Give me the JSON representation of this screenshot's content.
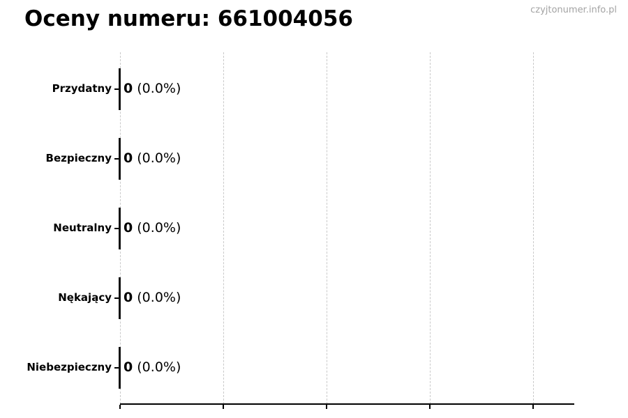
{
  "header": {
    "watermark": "czyjtonumer.info.pl"
  },
  "chart_data": {
    "type": "bar",
    "orientation": "horizontal",
    "title": "Oceny numeru: 661004056",
    "categories": [
      "Przydatny",
      "Bezpieczny",
      "Neutralny",
      "Nękający",
      "Niebezpieczny"
    ],
    "values": [
      0,
      0,
      0,
      0,
      0
    ],
    "percents": [
      "0.0%",
      "0.0%",
      "0.0%",
      "0.0%",
      "0.0%"
    ],
    "value_labels": [
      "0 (0.0%)",
      "0 (0.0%)",
      "0 (0.0%)",
      "0 (0.0%)",
      "0 (0.0%)"
    ],
    "xlim": [
      0,
      1
    ],
    "x_tick_labels": [],
    "gridline_count": 5,
    "grid_style": "vertical-dashed",
    "legend": false,
    "colors": {
      "text": "#000000",
      "axis": "#000000",
      "bar_edge": "#111111",
      "gridline": "#c9c9c9",
      "watermark": "#a3a3a3",
      "background": "#ffffff"
    }
  }
}
